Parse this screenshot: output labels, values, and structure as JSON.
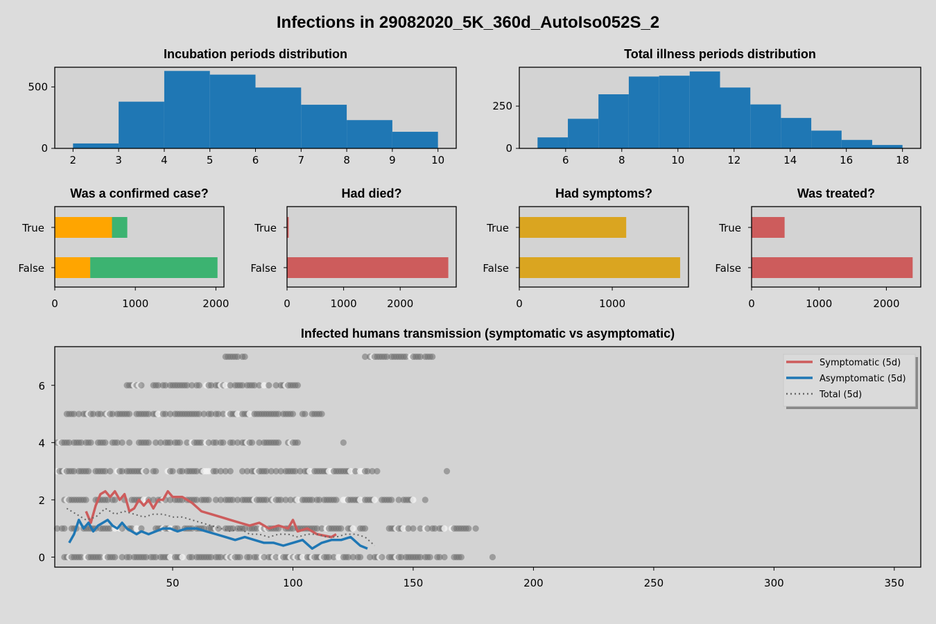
{
  "figure_title": "Infections in 29082020_5K_360d_AutoIso052S_2",
  "colors": {
    "background": "#dcdcdc",
    "axes_face": "#d3d3d3",
    "hist_blue": "#1f77b4",
    "orange": "#ffa500",
    "green": "#3cb371",
    "indianred": "#cd5c5c",
    "goldenrod": "#daa520",
    "dots": "#707070",
    "dots_light": "#f2f2f2"
  },
  "chart_data": [
    {
      "type": "bar",
      "title": "Incubation periods distribution",
      "bin_edges": [
        2,
        3,
        4,
        5,
        6,
        7,
        8,
        9,
        10
      ],
      "values": [
        40,
        380,
        630,
        600,
        495,
        355,
        230,
        135
      ],
      "xticks": [
        2,
        3,
        4,
        5,
        6,
        7,
        8,
        9,
        10
      ],
      "yticks": [
        0,
        500
      ],
      "xlim": [
        1.6,
        10.4
      ],
      "ylim": [
        0,
        660
      ]
    },
    {
      "type": "bar",
      "title": "Total illness periods distribution",
      "bin_edges": [
        5,
        6.08,
        7.17,
        8.25,
        9.33,
        10.42,
        11.5,
        12.58,
        13.67,
        14.75,
        15.83,
        16.92,
        18
      ],
      "values": [
        65,
        175,
        320,
        425,
        430,
        455,
        360,
        260,
        180,
        105,
        50,
        20
      ],
      "xticks": [
        6,
        8,
        10,
        12,
        14,
        16,
        18
      ],
      "yticks": [
        0,
        250
      ],
      "xlim": [
        4.35,
        18.65
      ],
      "ylim": [
        0,
        480
      ]
    },
    {
      "type": "bar",
      "orientation": "horizontal",
      "stacked": true,
      "title": "Was a confirmed case?",
      "categories": [
        "True",
        "False"
      ],
      "series": [
        {
          "values": [
            710,
            440
          ],
          "color": "#ffa500"
        },
        {
          "values": [
            190,
            1580
          ],
          "color": "#3cb371"
        }
      ],
      "xticks": [
        0,
        1000,
        2000
      ],
      "xlim": [
        0,
        2100
      ]
    },
    {
      "type": "bar",
      "orientation": "horizontal",
      "title": "Had died?",
      "categories": [
        "True",
        "False"
      ],
      "values": [
        30,
        2850
      ],
      "color": "#cd5c5c",
      "xticks": [
        0,
        1000,
        2000
      ],
      "xlim": [
        0,
        2990
      ]
    },
    {
      "type": "bar",
      "orientation": "horizontal",
      "title": "Had symptoms?",
      "categories": [
        "True",
        "False"
      ],
      "values": [
        1150,
        1730
      ],
      "color": "#daa520",
      "xticks": [
        0,
        1000
      ],
      "xlim": [
        0,
        1820
      ]
    },
    {
      "type": "bar",
      "orientation": "horizontal",
      "title": "Was treated?",
      "categories": [
        "True",
        "False"
      ],
      "values": [
        490,
        2390
      ],
      "color": "#cd5c5c",
      "xticks": [
        0,
        1000,
        2000
      ],
      "xlim": [
        0,
        2510
      ]
    },
    {
      "type": "scatter",
      "title": "Infected humans transmission (symptomatic vs asymptomatic)",
      "xlim": [
        1,
        361
      ],
      "ylim": [
        -0.35,
        7.35
      ],
      "xticks": [
        50,
        100,
        150,
        200,
        250,
        300,
        350
      ],
      "yticks": [
        0,
        2,
        4,
        6
      ],
      "points": {
        "7": [
          [
            70,
            80
          ],
          [
            130,
            158
          ]
        ],
        "6": [
          [
            30,
            102
          ]
        ],
        "5": [
          [
            5,
            112
          ]
        ],
        "4": [
          [
            1,
            102
          ],
          [
            121,
            121
          ]
        ],
        "3": [
          [
            1,
            135
          ],
          [
            164,
            164
          ]
        ],
        "2": [
          [
            3,
            150
          ],
          [
            155,
            155
          ]
        ],
        "1": [
          [
            1,
            130
          ],
          [
            140,
            176
          ]
        ],
        "0": [
          [
            4,
            170
          ],
          [
            183,
            183
          ]
        ]
      },
      "legend": [
        "Symptomatic (5d)",
        "Asymptomatic (5d)",
        "Total (5d)"
      ],
      "legend_position": "upper right",
      "series": [
        {
          "name": "Symptomatic (5d)",
          "color": "#cd5c5c",
          "x": [
            14,
            16,
            18,
            20,
            22,
            24,
            26,
            28,
            30,
            32,
            34,
            36,
            38,
            40,
            42,
            44,
            46,
            48,
            50,
            54,
            58,
            62,
            66,
            70,
            74,
            78,
            82,
            86,
            90,
            94,
            98,
            100,
            102,
            106,
            110,
            116,
            118
          ],
          "y": [
            1.6,
            1.2,
            1.8,
            2.2,
            2.3,
            2.1,
            2.3,
            2.0,
            2.2,
            1.6,
            1.7,
            2.0,
            1.8,
            2.0,
            1.7,
            2.0,
            2.0,
            2.3,
            2.1,
            2.1,
            1.9,
            1.6,
            1.5,
            1.4,
            1.3,
            1.2,
            1.1,
            1.2,
            1.0,
            1.1,
            1.0,
            1.3,
            0.9,
            1.0,
            0.8,
            0.7,
            0.8
          ]
        },
        {
          "name": "Asymptomatic (5d)",
          "color": "#1f77b4",
          "x": [
            7,
            9,
            11,
            13,
            15,
            17,
            19,
            21,
            23,
            25,
            27,
            29,
            31,
            33,
            35,
            37,
            40,
            43,
            46,
            49,
            52,
            56,
            60,
            64,
            68,
            72,
            76,
            80,
            84,
            88,
            92,
            96,
            100,
            104,
            108,
            112,
            116,
            120,
            124,
            128,
            131
          ],
          "y": [
            0.5,
            0.8,
            1.3,
            1.0,
            1.2,
            0.9,
            1.1,
            1.2,
            1.3,
            1.1,
            1.0,
            1.2,
            1.0,
            0.9,
            0.8,
            0.9,
            0.8,
            0.9,
            1.0,
            1.0,
            0.9,
            1.0,
            1.0,
            0.9,
            0.8,
            0.7,
            0.6,
            0.7,
            0.6,
            0.5,
            0.5,
            0.4,
            0.5,
            0.6,
            0.3,
            0.5,
            0.6,
            0.6,
            0.7,
            0.4,
            0.3
          ]
        },
        {
          "name": "Total (5d)",
          "color": "#666666",
          "dashed": true,
          "x": [
            6,
            10,
            14,
            18,
            22,
            26,
            30,
            34,
            38,
            42,
            46,
            50,
            54,
            58,
            62,
            66,
            70,
            74,
            78,
            82,
            86,
            90,
            94,
            98,
            102,
            106,
            110,
            114,
            118,
            122,
            126,
            130,
            134
          ],
          "y": [
            1.7,
            1.5,
            1.3,
            1.4,
            1.7,
            1.5,
            1.6,
            1.5,
            1.4,
            1.5,
            1.5,
            1.4,
            1.4,
            1.3,
            1.2,
            1.1,
            1.0,
            0.9,
            1.0,
            0.8,
            0.8,
            0.7,
            0.8,
            0.8,
            0.7,
            0.8,
            0.8,
            0.7,
            0.7,
            0.8,
            0.8,
            0.7,
            0.4
          ]
        }
      ]
    }
  ]
}
